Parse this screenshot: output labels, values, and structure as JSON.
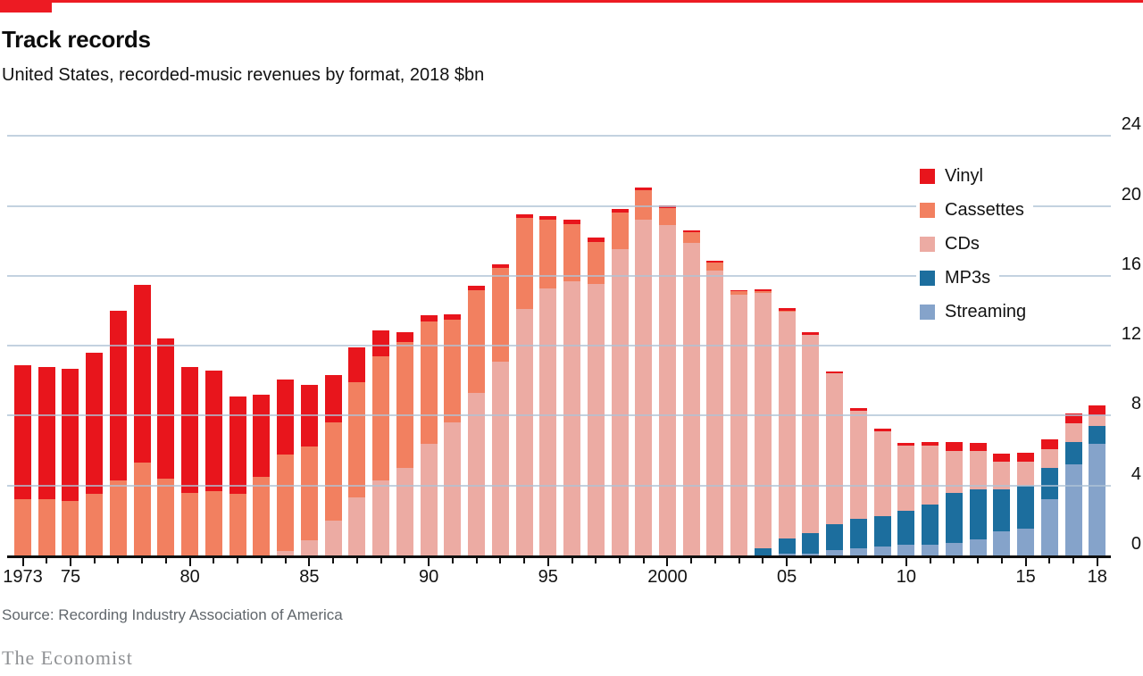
{
  "header": {
    "title": "Track records",
    "subtitle": "United States, recorded-music revenues by format, 2018 $bn"
  },
  "footer": {
    "source": "Source: Recording Industry Association of America",
    "brand": "The Economist"
  },
  "colors": {
    "brand_red": "#ed1b23",
    "vinyl": "#e8151c",
    "cassettes": "#f28060",
    "cds": "#ecaba3",
    "mp3s": "#1c6e9e",
    "streaming": "#85a3ca",
    "gridline": "#c4d1dd",
    "axis": "#0f0f0f"
  },
  "chart_data": {
    "type": "bar",
    "stacked": true,
    "title": "Track records",
    "subtitle": "United States, recorded-music revenues by format, 2018 $bn",
    "unit": "2018 $bn",
    "grid": "horizontal",
    "ylim": [
      0,
      24
    ],
    "yticks": [
      0,
      4,
      8,
      12,
      16,
      20,
      24
    ],
    "ytick_side": "right",
    "legend_position": "upper-right",
    "stack_order_bottom_to_top": [
      "Streaming",
      "MP3s",
      "CDs",
      "Cassettes",
      "Vinyl"
    ],
    "x": [
      1973,
      1974,
      1975,
      1976,
      1977,
      1978,
      1979,
      1980,
      1981,
      1982,
      1983,
      1984,
      1985,
      1986,
      1987,
      1988,
      1989,
      1990,
      1991,
      1992,
      1993,
      1994,
      1995,
      1996,
      1997,
      1998,
      1999,
      2000,
      2001,
      2002,
      2003,
      2004,
      2005,
      2006,
      2007,
      2008,
      2009,
      2010,
      2011,
      2012,
      2013,
      2014,
      2015,
      2016,
      2017,
      2018
    ],
    "xtick_labels": [
      {
        "year": 1973,
        "label": "1973"
      },
      {
        "year": 1975,
        "label": "75"
      },
      {
        "year": 1980,
        "label": "80"
      },
      {
        "year": 1985,
        "label": "85"
      },
      {
        "year": 1990,
        "label": "90"
      },
      {
        "year": 1995,
        "label": "95"
      },
      {
        "year": 2000,
        "label": "2000"
      },
      {
        "year": 2005,
        "label": "05"
      },
      {
        "year": 2010,
        "label": "10"
      },
      {
        "year": 2015,
        "label": "15"
      },
      {
        "year": 2018,
        "label": "18"
      }
    ],
    "series": [
      {
        "name": "Vinyl",
        "color": "#e8151c",
        "values": [
          7.7,
          7.6,
          7.6,
          8.1,
          9.7,
          10.2,
          8.0,
          7.2,
          6.9,
          5.6,
          4.7,
          4.3,
          3.5,
          2.7,
          2.0,
          1.5,
          0.55,
          0.35,
          0.3,
          0.25,
          0.2,
          0.2,
          0.2,
          0.25,
          0.25,
          0.2,
          0.15,
          0.15,
          0.1,
          0.1,
          0.1,
          0.15,
          0.15,
          0.15,
          0.15,
          0.15,
          0.15,
          0.15,
          0.2,
          0.5,
          0.45,
          0.5,
          0.55,
          0.55,
          0.55,
          0.6
        ]
      },
      {
        "name": "Cassettes",
        "color": "#f28060",
        "values": [
          3.2,
          3.2,
          3.1,
          3.5,
          4.3,
          5.3,
          4.4,
          3.6,
          3.7,
          3.5,
          4.5,
          5.5,
          5.4,
          5.6,
          6.6,
          7.1,
          7.2,
          7.0,
          5.9,
          5.9,
          5.35,
          5.2,
          3.9,
          3.25,
          2.4,
          2.1,
          1.7,
          1.0,
          0.6,
          0.45,
          0.2,
          0.1,
          0.05,
          0,
          0,
          0,
          0,
          0,
          0,
          0,
          0,
          0,
          0,
          0,
          0,
          0
        ]
      },
      {
        "name": "CDs",
        "color": "#ecaba3",
        "values": [
          0,
          0,
          0,
          0,
          0,
          0,
          0,
          0,
          0,
          0,
          0,
          0.25,
          0.85,
          2.0,
          3.3,
          4.3,
          5.0,
          6.4,
          7.6,
          9.3,
          11.1,
          14.1,
          15.3,
          15.7,
          15.55,
          17.5,
          19.2,
          18.9,
          17.9,
          16.3,
          14.9,
          14.6,
          13.0,
          11.3,
          8.6,
          6.2,
          4.85,
          3.75,
          3.4,
          2.4,
          2.2,
          1.55,
          1.35,
          1.1,
          1.05,
          0.6
        ]
      },
      {
        "name": "MP3s",
        "color": "#1c6e9e",
        "values": [
          0,
          0,
          0,
          0,
          0,
          0,
          0,
          0,
          0,
          0,
          0,
          0,
          0,
          0,
          0,
          0,
          0,
          0,
          0,
          0,
          0,
          0,
          0,
          0,
          0,
          0,
          0,
          0,
          0,
          0,
          0,
          0.4,
          0.85,
          1.2,
          1.5,
          1.7,
          1.75,
          1.95,
          2.3,
          2.9,
          2.9,
          2.4,
          2.45,
          1.8,
          1.3,
          1.0
        ]
      },
      {
        "name": "Streaming",
        "color": "#85a3ca",
        "values": [
          0,
          0,
          0,
          0,
          0,
          0,
          0,
          0,
          0,
          0,
          0,
          0,
          0,
          0,
          0,
          0,
          0,
          0,
          0,
          0,
          0,
          0,
          0,
          0,
          0,
          0,
          0,
          0,
          0,
          0,
          0,
          0,
          0.1,
          0.1,
          0.3,
          0.4,
          0.5,
          0.6,
          0.6,
          0.7,
          0.9,
          1.4,
          1.55,
          3.2,
          5.2,
          6.4
        ]
      }
    ],
    "legend": [
      "Vinyl",
      "Cassettes",
      "CDs",
      "MP3s",
      "Streaming"
    ]
  }
}
